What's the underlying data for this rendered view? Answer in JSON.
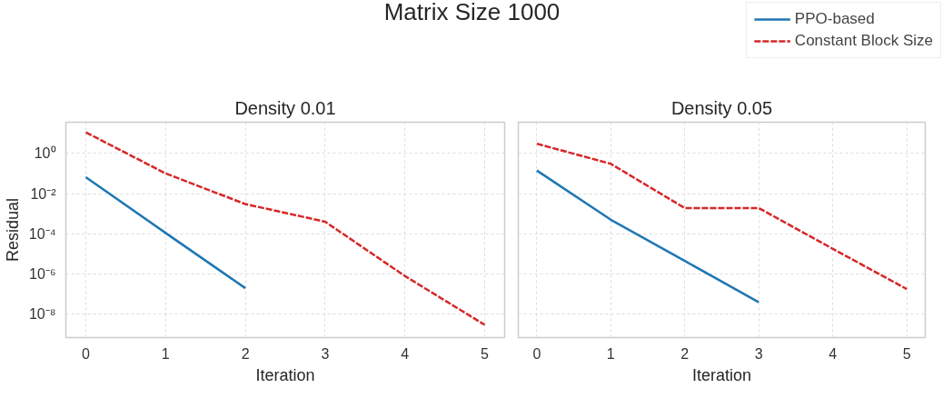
{
  "chart_data": [
    {
      "type": "line",
      "title": "Density 0.01",
      "xlabel": "Iteration",
      "ylabel": "Residual",
      "annotations": [
        "Matrix Size 1000"
      ],
      "log": "y",
      "grid": true,
      "legend": "top right",
      "x": [
        0,
        1,
        2,
        3,
        4,
        5
      ],
      "xlim": [
        -0.25,
        5.25
      ],
      "xticks": [
        0,
        1,
        2,
        3,
        4,
        5
      ],
      "ylim": [
        7e-10,
        35
      ],
      "yticks": [
        {
          "value": 1,
          "label": "10⁰"
        },
        {
          "value": 0.01,
          "label": "10⁻²"
        },
        {
          "value": 0.0001,
          "label": "10⁻⁴"
        },
        {
          "value": 1e-06,
          "label": "10⁻⁶"
        },
        {
          "value": 1e-08,
          "label": "10⁻⁸"
        }
      ],
      "series": [
        {
          "name": "PPO-based",
          "color": "#1f77b4",
          "line_style": "solid",
          "values": [
            0.065,
            0.00011,
            2e-07,
            null,
            null,
            null
          ]
        },
        {
          "name": "Constant Block Size",
          "color": "#d62728",
          "line_style": "dashed",
          "values": [
            11,
            0.1,
            0.003,
            0.0004,
            8e-07,
            3e-09
          ]
        }
      ]
    },
    {
      "type": "line",
      "title": "Density 0.05",
      "xlabel": "Iteration",
      "log": "y",
      "grid": true,
      "tick_labels": "x",
      "x": [
        0,
        1,
        2,
        3,
        4,
        5
      ],
      "xlim": [
        -0.25,
        5.25
      ],
      "xticks": [
        0,
        1,
        2,
        3,
        4,
        5
      ],
      "ylim": [
        7e-10,
        35
      ],
      "yticks": [
        {
          "value": 1,
          "label": null
        },
        {
          "value": 0.01,
          "label": null
        },
        {
          "value": 0.0001,
          "label": null
        },
        {
          "value": 1e-06,
          "label": null
        },
        {
          "value": 1e-08,
          "label": null
        }
      ],
      "series": [
        {
          "color": "#1f77b4",
          "line_style": "solid",
          "values": [
            0.14,
            0.0005,
            4.5e-06,
            4e-08,
            null,
            null
          ]
        },
        {
          "color": "#d62728",
          "line_style": "dashed",
          "values": [
            3,
            0.3,
            0.0019,
            0.0019,
            1.8e-05,
            1.8e-07
          ]
        }
      ]
    }
  ]
}
